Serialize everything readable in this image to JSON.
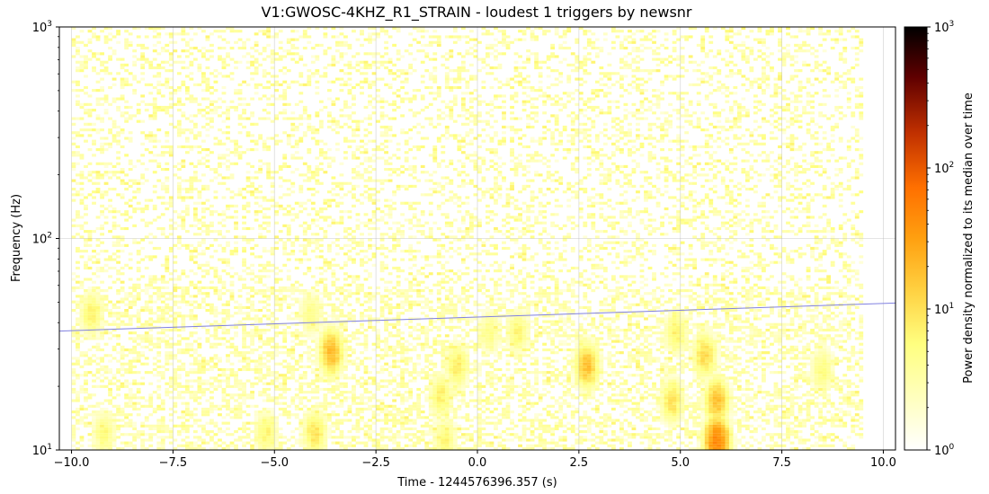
{
  "chart_data": {
    "type": "heatmap",
    "title": "V1:GWOSC-4KHZ_R1_STRAIN - loudest 1 triggers by newsnr",
    "xlabel": "Time - 1244576396.357 (s)",
    "ylabel": "Frequency (Hz)",
    "colorbar_label": "Power density normalized to its median over time",
    "xlim": [
      -10.3,
      10.3
    ],
    "ylim": [
      10,
      1000
    ],
    "yscale": "log",
    "grid": true,
    "x_ticks": [
      {
        "value": -10.0,
        "label": "−10.0"
      },
      {
        "value": -7.5,
        "label": "−7.5"
      },
      {
        "value": -5.0,
        "label": "−5.0"
      },
      {
        "value": -2.5,
        "label": "−2.5"
      },
      {
        "value": 0.0,
        "label": "0.0"
      },
      {
        "value": 2.5,
        "label": "2.5"
      },
      {
        "value": 5.0,
        "label": "5.0"
      },
      {
        "value": 7.5,
        "label": "7.5"
      },
      {
        "value": 10.0,
        "label": "10.0"
      }
    ],
    "y_ticks": [
      {
        "value": 10,
        "base": "10",
        "exp": "1"
      },
      {
        "value": 100,
        "base": "10",
        "exp": "2"
      },
      {
        "value": 1000,
        "base": "10",
        "exp": "3"
      }
    ],
    "colorbar": {
      "range": [
        1,
        1000
      ],
      "scale": "log",
      "colormap": "afmhot_r",
      "ticks": [
        {
          "value": 1,
          "base": "10",
          "exp": "0"
        },
        {
          "value": 10,
          "base": "10",
          "exp": "1"
        },
        {
          "value": 100,
          "base": "10",
          "exp": "2"
        },
        {
          "value": 1000,
          "base": "10",
          "exp": "3"
        }
      ]
    },
    "data_time_range": [
      -10.0,
      9.4
    ],
    "hotspots": [
      {
        "t": 5.9,
        "f": 11,
        "power": 60
      },
      {
        "t": 5.9,
        "f": 17,
        "power": 22
      },
      {
        "t": 5.6,
        "f": 28,
        "power": 14
      },
      {
        "t": 4.8,
        "f": 17,
        "power": 12
      },
      {
        "t": 4.9,
        "f": 36,
        "power": 9
      },
      {
        "t": 2.7,
        "f": 25,
        "power": 22
      },
      {
        "t": -3.6,
        "f": 29,
        "power": 25
      },
      {
        "t": -4.0,
        "f": 12,
        "power": 12
      },
      {
        "t": -5.2,
        "f": 12,
        "power": 8
      },
      {
        "t": -0.8,
        "f": 11,
        "power": 8
      },
      {
        "t": -0.9,
        "f": 18,
        "power": 9
      },
      {
        "t": -0.5,
        "f": 25,
        "power": 10
      },
      {
        "t": -9.2,
        "f": 12,
        "power": 7
      },
      {
        "t": -9.5,
        "f": 44,
        "power": 9
      },
      {
        "t": 1.0,
        "f": 36,
        "power": 8
      },
      {
        "t": 8.5,
        "f": 24,
        "power": 7
      },
      {
        "t": -4.1,
        "f": 44,
        "power": 6
      },
      {
        "t": 0.3,
        "f": 36,
        "power": 6
      }
    ],
    "track_line": {
      "color": "#8080e0",
      "points": [
        [
          -10.3,
          36.5
        ],
        [
          10.3,
          49.5
        ]
      ]
    }
  }
}
